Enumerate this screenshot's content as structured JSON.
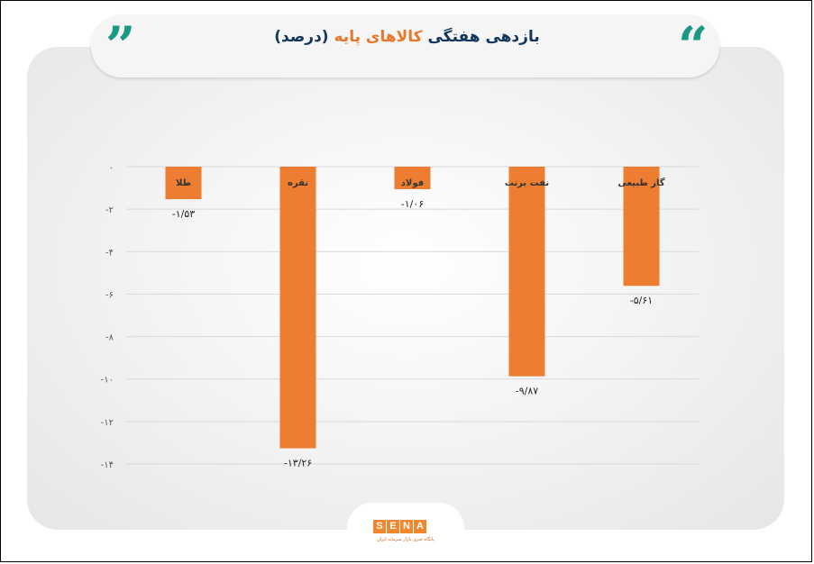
{
  "header": {
    "title_start": "بازدهی هفتگی ",
    "title_highlight": "کالاهای پایه",
    "title_end": " (درصد)",
    "quote_open": "”",
    "quote_close": "“"
  },
  "chart_data": {
    "type": "bar",
    "title": "بازدهی هفتگی کالاهای پایه (درصد)",
    "categories": [
      "طلا",
      "نقره",
      "فولاد",
      "نفت برنت",
      "گاز طبیعی"
    ],
    "values": [
      -1.53,
      -13.26,
      -1.06,
      -9.87,
      -5.61
    ],
    "value_labels": [
      "-۱/۵۳",
      "-۱۳/۲۶",
      "-۱/۰۶",
      "-۹/۸۷",
      "-۵/۶۱"
    ],
    "ylim": [
      -14,
      0
    ],
    "y_ticks": [
      0,
      -2,
      -4,
      -6,
      -8,
      -10,
      -12,
      -14
    ],
    "y_tick_labels": [
      "۰",
      "-۲",
      "-۴",
      "-۶",
      "-۸",
      "-۱۰",
      "-۱۲",
      "-۱۴"
    ],
    "bar_color": "#ed7d31",
    "grid": true
  },
  "logo": {
    "letters": [
      "S",
      "E",
      "N",
      "A"
    ],
    "subtitle": "پایگاه خبری بازار سرمایه ایران"
  }
}
